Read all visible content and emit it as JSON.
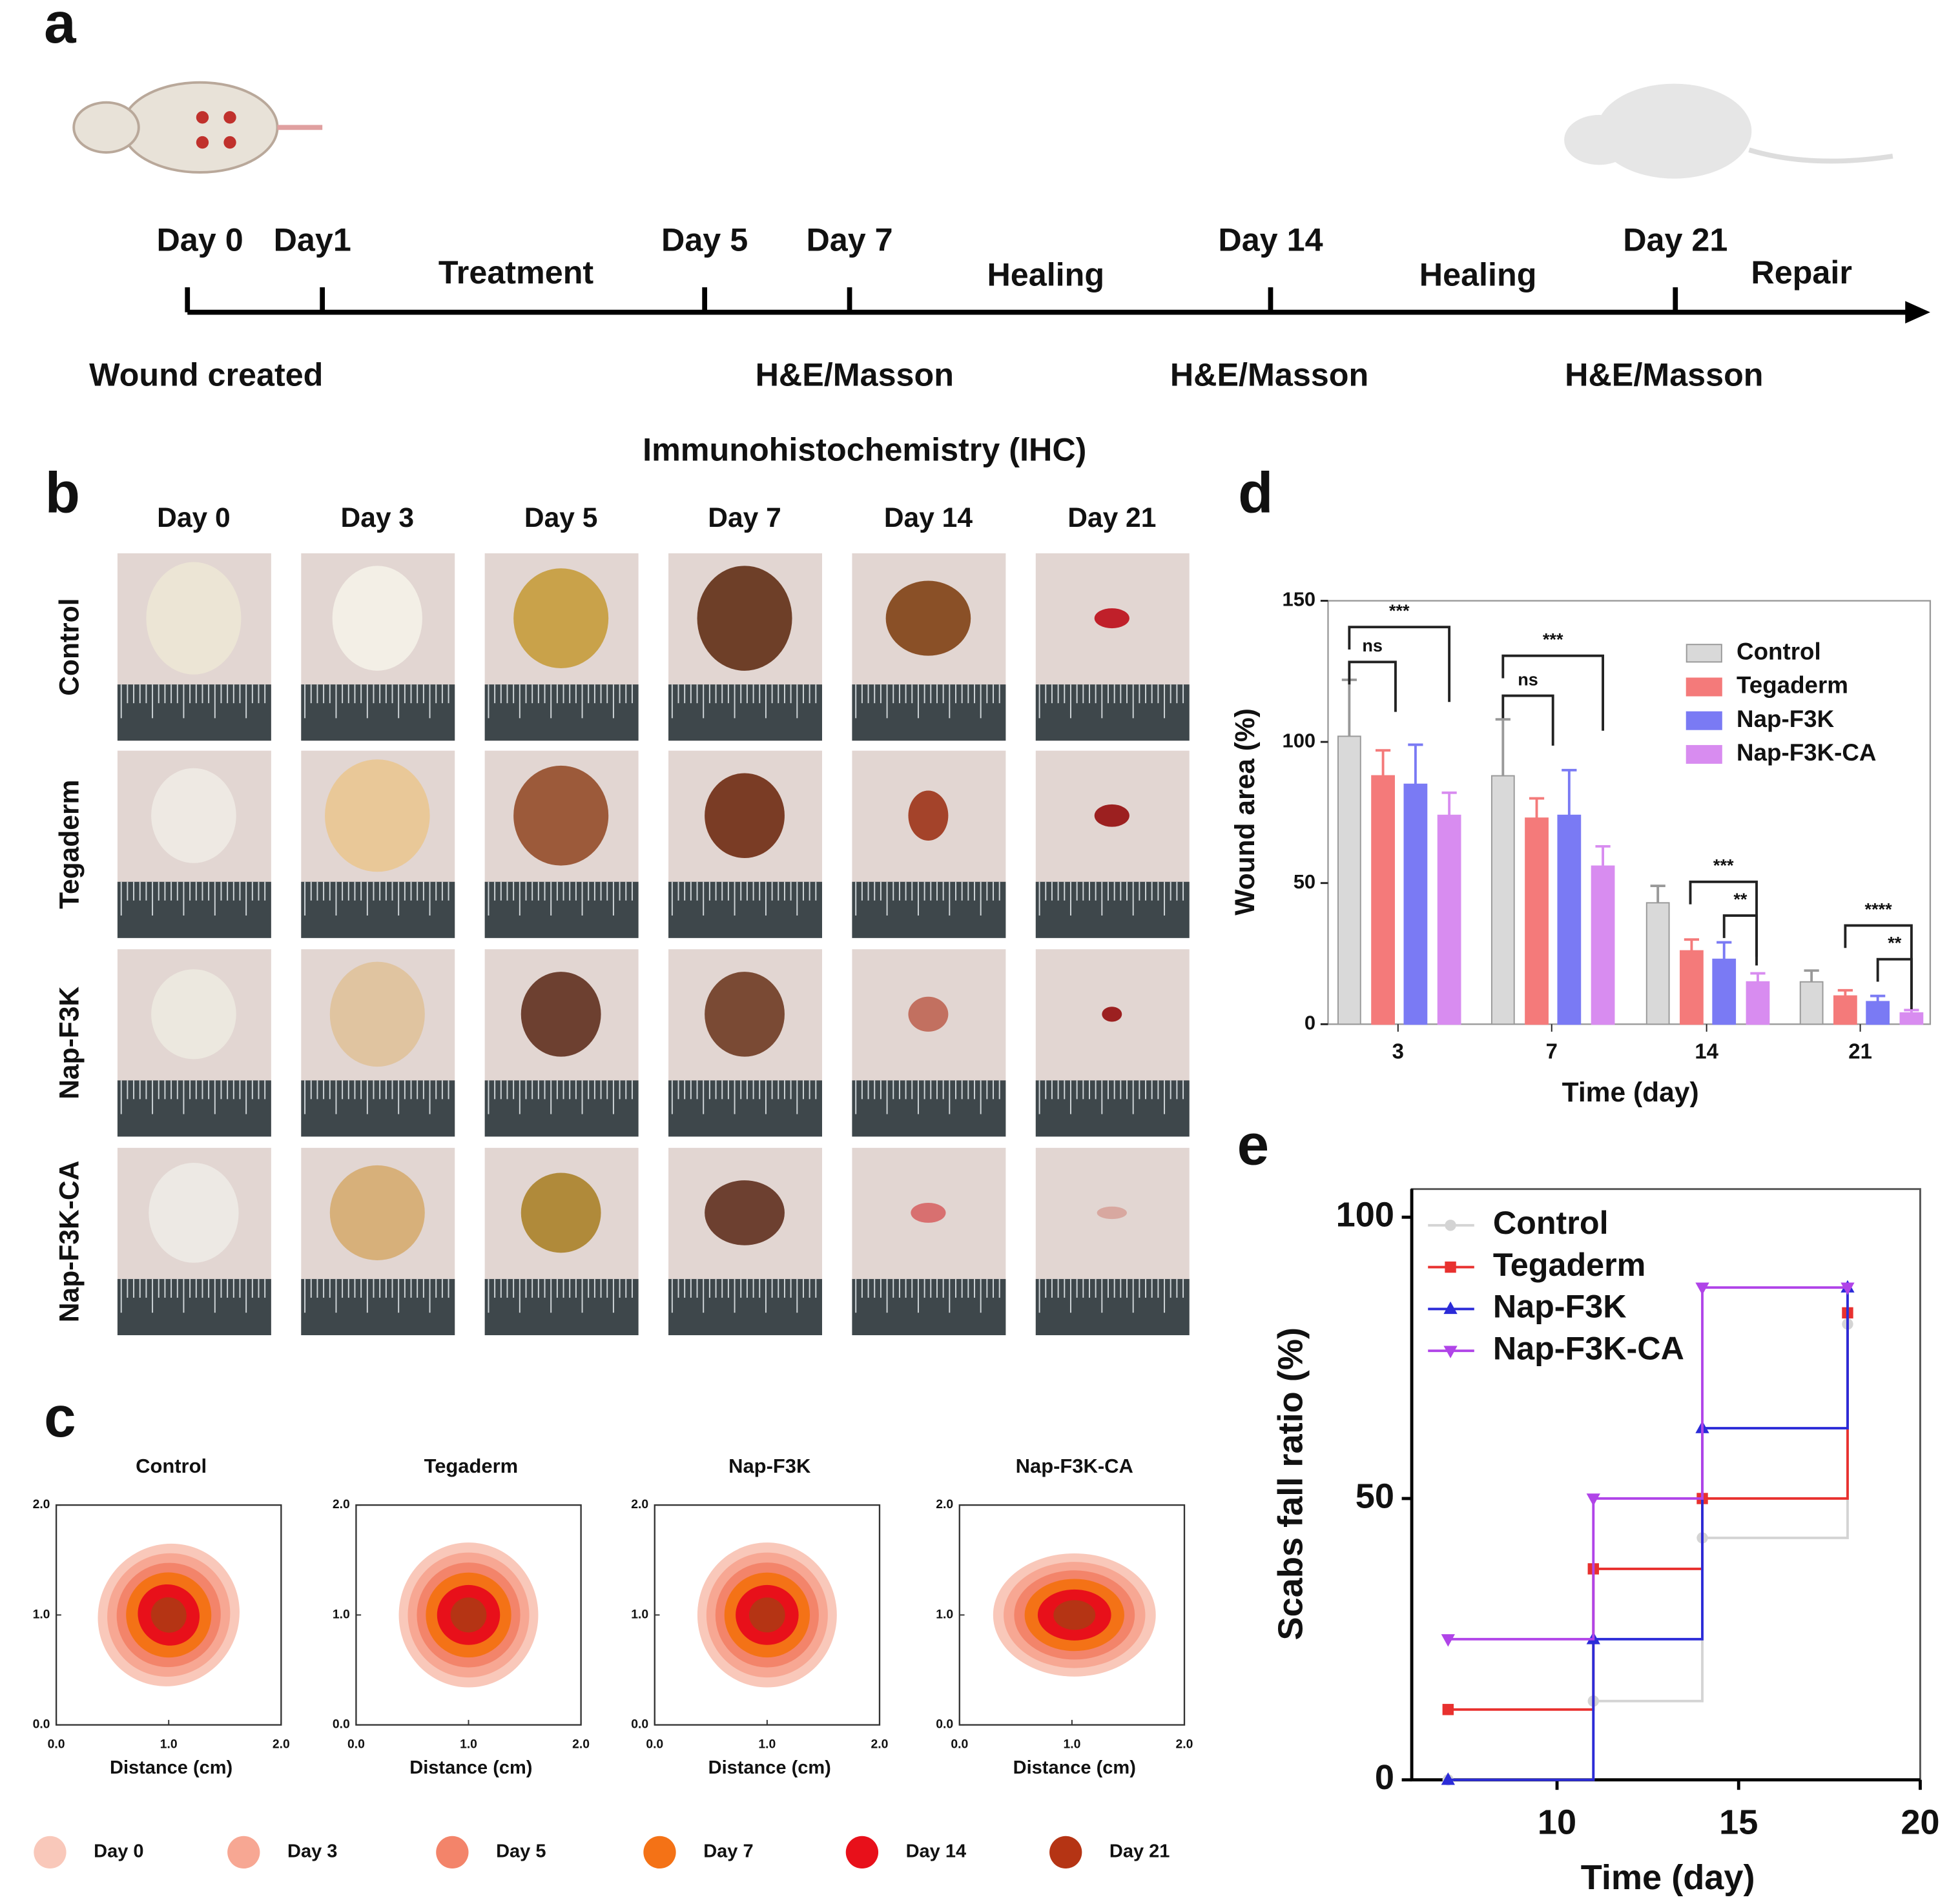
{
  "panel_labels": [
    "a",
    "b",
    "c",
    "d",
    "e"
  ],
  "timeline": {
    "markers": [
      "Day 0",
      "Day1",
      "Day 5",
      "Day 7",
      "Day 14",
      "Day 21"
    ],
    "phases": [
      "Treatment",
      "Healing",
      "Healing",
      "Repair"
    ],
    "below": [
      "Wound created",
      "H&E/Masson",
      "H&E/Masson",
      "H&E/Masson",
      "Immunohistochemistry (IHC)"
    ]
  },
  "photos": {
    "columns": [
      "Day 0",
      "Day 3",
      "Day 5",
      "Day 7",
      "Day 14",
      "Day 21"
    ],
    "rows": [
      "Control",
      "Tegaderm",
      "Nap-F3K",
      "Nap-F3K-CA"
    ]
  },
  "panel_c": {
    "titles": [
      "Control",
      "Tegaderm",
      "Nap-F3K",
      "Nap-F3K-CA"
    ],
    "xlabel": "Distance (cm)",
    "lim": [
      0,
      2
    ],
    "ticks": [
      {
        "value": 0,
        "label": "0.0"
      },
      {
        "value": 1,
        "label": "1.0"
      },
      {
        "value": 2,
        "label": "2.0"
      }
    ],
    "legend": [
      {
        "name": "Day 0",
        "color": "#f9c8ba"
      },
      {
        "name": "Day 3",
        "color": "#f7a793"
      },
      {
        "name": "Day 5",
        "color": "#f3846a"
      },
      {
        "name": "Day 7",
        "color": "#f47216"
      },
      {
        "name": "Day 14",
        "color": "#e8101a"
      },
      {
        "name": "Day 21",
        "color": "#b53414"
      }
    ]
  },
  "chart_data": [
    {
      "type": "bar",
      "xlabel": "Time (day)",
      "ylabel": "Wound area (%)",
      "categories": [
        "3",
        "7",
        "14",
        "21"
      ],
      "ylim": [
        0,
        150
      ],
      "yticks": [
        0,
        50,
        100,
        150
      ],
      "series": [
        {
          "name": "Control",
          "color": "#d9d9d9",
          "values": [
            102,
            88,
            43,
            15
          ],
          "errors": [
            20,
            20,
            6,
            4
          ]
        },
        {
          "name": "Tegaderm",
          "color": "#f47a7a",
          "values": [
            88,
            73,
            26,
            10
          ],
          "errors": [
            9,
            7,
            4,
            2
          ]
        },
        {
          "name": "Nap-F3K",
          "color": "#7a7af4",
          "values": [
            85,
            74,
            23,
            8
          ],
          "errors": [
            14,
            16,
            6,
            2
          ]
        },
        {
          "name": "Nap-F3K-CA",
          "color": "#d88cf0",
          "values": [
            74,
            56,
            15,
            4
          ],
          "errors": [
            8,
            7,
            3,
            1
          ]
        }
      ],
      "annotations": [
        "***",
        "ns",
        "***",
        "ns",
        "***",
        "**",
        "****",
        "**"
      ]
    },
    {
      "type": "step",
      "xlabel": "Time (day)",
      "ylabel": "Scabs fall ratio (%)",
      "x": [
        7,
        11,
        14,
        18
      ],
      "xlim": [
        6,
        20
      ],
      "xticks": [
        10,
        15,
        20
      ],
      "ylim": [
        0,
        105
      ],
      "yticks": [
        0,
        50,
        100
      ],
      "series": [
        {
          "name": "Control",
          "color": "#d4d4d4",
          "values": [
            0,
            14,
            43,
            81
          ]
        },
        {
          "name": "Tegaderm",
          "color": "#e8312f",
          "values": [
            12.5,
            37.5,
            50,
            83
          ]
        },
        {
          "name": "Nap-F3K",
          "color": "#2b2bd8",
          "values": [
            0,
            25,
            62.5,
            87.5
          ]
        },
        {
          "name": "Nap-F3K-CA",
          "color": "#b044e8",
          "values": [
            25,
            50,
            87.5,
            87.5
          ]
        }
      ]
    }
  ]
}
